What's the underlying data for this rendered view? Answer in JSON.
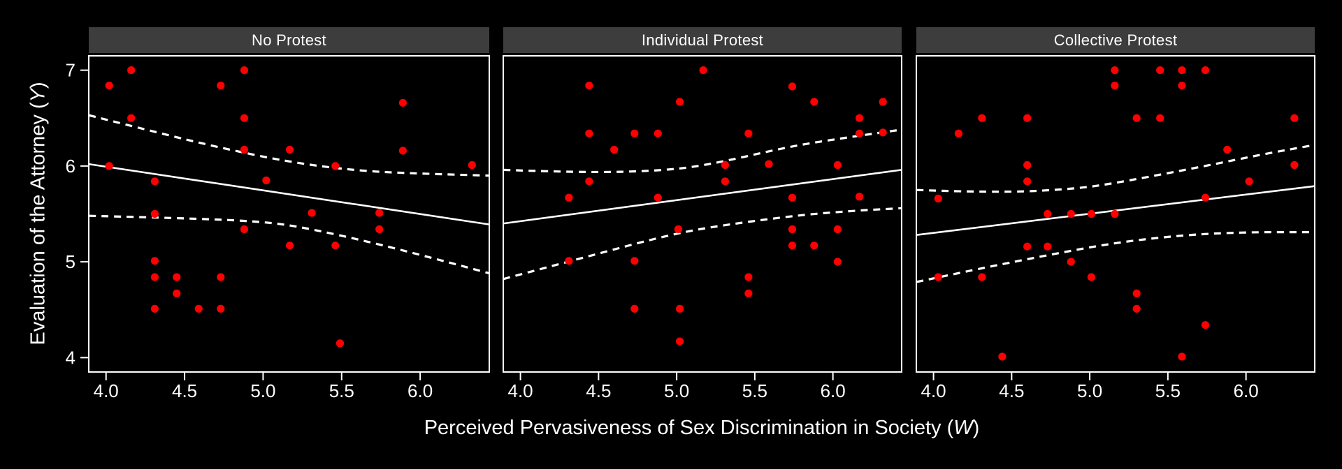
{
  "figure": {
    "background": "#000000",
    "panel_background": "#000000",
    "border_color": "#ffffff",
    "strip_background": "#3d3d3d",
    "strip_text_color": "#ffffff",
    "point_color": "#ff0000",
    "line_color": "#ffffff",
    "tick_color": "#ffffff",
    "text_color": "#ffffff"
  },
  "chart_data": {
    "type": "scatter",
    "x_label_prefix": "Perceived Pervasiveness of Sex Discrimination in Society (",
    "x_label_var": "W",
    "x_label_suffix": ")",
    "y_label_prefix": "Evaluation of the Attorney (",
    "y_label_var": "Y",
    "y_label_suffix": ")",
    "xlim": [
      3.89,
      6.44
    ],
    "ylim": [
      3.85,
      7.15
    ],
    "grid_on": false,
    "legend_position": "none",
    "x_ticks": [
      {
        "label": "4.0",
        "value": 4.0
      },
      {
        "label": "4.5",
        "value": 4.5
      },
      {
        "label": "5.0",
        "value": 5.0
      },
      {
        "label": "5.5",
        "value": 5.5
      },
      {
        "label": "6.0",
        "value": 6.0
      }
    ],
    "y_ticks": [
      {
        "label": "7",
        "value": 7
      },
      {
        "label": "6",
        "value": 6
      },
      {
        "label": "5",
        "value": 5
      },
      {
        "label": "4",
        "value": 4
      }
    ],
    "facets": [
      {
        "label": "No Protest",
        "points": [
          [
            4.16,
            7.0
          ],
          [
            4.88,
            7.0
          ],
          [
            4.02,
            6.84
          ],
          [
            4.73,
            6.84
          ],
          [
            5.89,
            6.66
          ],
          [
            4.16,
            6.5
          ],
          [
            4.88,
            6.5
          ],
          [
            4.88,
            6.17
          ],
          [
            5.17,
            6.17
          ],
          [
            5.89,
            6.16
          ],
          [
            4.02,
            6.0
          ],
          [
            5.46,
            6.0
          ],
          [
            6.33,
            6.01
          ],
          [
            4.31,
            5.84
          ],
          [
            5.02,
            5.85
          ],
          [
            4.31,
            5.5
          ],
          [
            5.31,
            5.51
          ],
          [
            5.74,
            5.51
          ],
          [
            4.88,
            5.34
          ],
          [
            5.74,
            5.34
          ],
          [
            5.17,
            5.17
          ],
          [
            5.46,
            5.17
          ],
          [
            4.31,
            5.01
          ],
          [
            4.31,
            4.84
          ],
          [
            4.45,
            4.84
          ],
          [
            4.73,
            4.84
          ],
          [
            4.45,
            4.67
          ],
          [
            4.31,
            4.51
          ],
          [
            4.59,
            4.51
          ],
          [
            4.73,
            4.51
          ],
          [
            5.49,
            4.15
          ]
        ],
        "fit_line": [
          [
            3.89,
            6.02
          ],
          [
            6.44,
            5.39
          ]
        ],
        "ci_upper": [
          [
            3.89,
            6.53
          ],
          [
            4.3,
            6.36
          ],
          [
            4.7,
            6.2
          ],
          [
            5.17,
            6.04
          ],
          [
            5.6,
            5.95
          ],
          [
            6.0,
            5.92
          ],
          [
            6.44,
            5.9
          ]
        ],
        "ci_lower": [
          [
            3.89,
            5.48
          ],
          [
            4.4,
            5.46
          ],
          [
            4.9,
            5.43
          ],
          [
            5.2,
            5.38
          ],
          [
            5.7,
            5.2
          ],
          [
            6.1,
            5.03
          ],
          [
            6.44,
            4.88
          ]
        ]
      },
      {
        "label": "Individual Protest",
        "points": [
          [
            5.17,
            7.0
          ],
          [
            4.44,
            6.84
          ],
          [
            5.74,
            6.83
          ],
          [
            5.02,
            6.67
          ],
          [
            5.88,
            6.67
          ],
          [
            6.32,
            6.67
          ],
          [
            6.17,
            6.5
          ],
          [
            4.44,
            6.34
          ],
          [
            4.73,
            6.34
          ],
          [
            4.88,
            6.34
          ],
          [
            5.46,
            6.34
          ],
          [
            6.17,
            6.34
          ],
          [
            6.32,
            6.35
          ],
          [
            4.6,
            6.17
          ],
          [
            5.31,
            6.01
          ],
          [
            5.59,
            6.02
          ],
          [
            6.03,
            6.01
          ],
          [
            4.44,
            5.84
          ],
          [
            5.31,
            5.84
          ],
          [
            4.31,
            5.67
          ],
          [
            4.88,
            5.67
          ],
          [
            5.74,
            5.67
          ],
          [
            6.17,
            5.68
          ],
          [
            5.01,
            5.34
          ],
          [
            5.74,
            5.34
          ],
          [
            6.03,
            5.34
          ],
          [
            5.74,
            5.17
          ],
          [
            5.88,
            5.17
          ],
          [
            4.31,
            5.01
          ],
          [
            4.73,
            5.01
          ],
          [
            6.03,
            5.0
          ],
          [
            5.46,
            4.84
          ],
          [
            5.46,
            4.67
          ],
          [
            4.73,
            4.51
          ],
          [
            5.02,
            4.51
          ],
          [
            5.02,
            4.17
          ]
        ],
        "fit_line": [
          [
            3.89,
            5.4
          ],
          [
            6.44,
            5.96
          ]
        ],
        "ci_upper": [
          [
            3.89,
            5.96
          ],
          [
            4.4,
            5.93
          ],
          [
            4.9,
            5.95
          ],
          [
            5.2,
            6.01
          ],
          [
            5.74,
            6.21
          ],
          [
            6.1,
            6.3
          ],
          [
            6.44,
            6.38
          ]
        ],
        "ci_lower": [
          [
            3.89,
            4.82
          ],
          [
            4.44,
            5.06
          ],
          [
            4.9,
            5.26
          ],
          [
            5.2,
            5.36
          ],
          [
            5.74,
            5.48
          ],
          [
            6.1,
            5.53
          ],
          [
            6.44,
            5.56
          ]
        ]
      },
      {
        "label": "Collective Protest",
        "points": [
          [
            5.16,
            7.0
          ],
          [
            5.45,
            7.0
          ],
          [
            5.59,
            7.0
          ],
          [
            5.74,
            7.0
          ],
          [
            5.16,
            6.84
          ],
          [
            5.59,
            6.84
          ],
          [
            4.31,
            6.5
          ],
          [
            4.6,
            6.5
          ],
          [
            5.3,
            6.5
          ],
          [
            5.45,
            6.5
          ],
          [
            6.31,
            6.5
          ],
          [
            4.16,
            6.34
          ],
          [
            5.88,
            6.17
          ],
          [
            4.6,
            6.01
          ],
          [
            6.31,
            6.01
          ],
          [
            4.6,
            5.84
          ],
          [
            6.02,
            5.84
          ],
          [
            4.03,
            5.66
          ],
          [
            5.74,
            5.67
          ],
          [
            4.73,
            5.5
          ],
          [
            4.88,
            5.5
          ],
          [
            5.01,
            5.5
          ],
          [
            5.16,
            5.5
          ],
          [
            4.6,
            5.16
          ],
          [
            4.73,
            5.16
          ],
          [
            4.88,
            5.0
          ],
          [
            4.03,
            4.84
          ],
          [
            4.31,
            4.84
          ],
          [
            5.01,
            4.84
          ],
          [
            5.3,
            4.67
          ],
          [
            5.3,
            4.51
          ],
          [
            5.74,
            4.34
          ],
          [
            4.44,
            4.01
          ],
          [
            5.59,
            4.01
          ]
        ],
        "fit_line": [
          [
            3.89,
            5.28
          ],
          [
            6.44,
            5.79
          ]
        ],
        "ci_upper": [
          [
            3.89,
            5.75
          ],
          [
            4.4,
            5.72
          ],
          [
            4.9,
            5.76
          ],
          [
            5.16,
            5.82
          ],
          [
            5.74,
            6.0
          ],
          [
            6.1,
            6.12
          ],
          [
            6.44,
            6.22
          ]
        ],
        "ci_lower": [
          [
            3.89,
            4.79
          ],
          [
            4.3,
            4.93
          ],
          [
            4.7,
            5.06
          ],
          [
            5.16,
            5.2
          ],
          [
            5.6,
            5.28
          ],
          [
            6.0,
            5.31
          ],
          [
            6.44,
            5.31
          ]
        ]
      }
    ]
  }
}
